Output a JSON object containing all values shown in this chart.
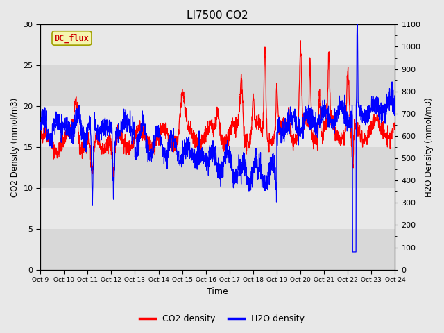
{
  "title": "LI7500 CO2",
  "xlabel": "Time",
  "ylabel_left": "CO2 Density (mmol/m3)",
  "ylabel_right": "H2O Density (mmol/m3)",
  "x_tick_labels": [
    "Oct 9",
    "Oct 10",
    "Oct 11",
    "Oct 12",
    "Oct 13",
    "Oct 14",
    "Oct 15",
    "Oct 16",
    "Oct 17",
    "Oct 18",
    "Oct 19",
    "Oct 20",
    "Oct 21",
    "Oct 22",
    "Oct 23",
    "Oct 24"
  ],
  "ylim_left": [
    0,
    30
  ],
  "ylim_right": [
    0,
    1100
  ],
  "yticks_left": [
    0,
    5,
    10,
    15,
    20,
    25,
    30
  ],
  "yticks_right": [
    0,
    100,
    200,
    300,
    400,
    500,
    600,
    700,
    800,
    900,
    1000,
    1100
  ],
  "co2_color": "#ff0000",
  "h2o_color": "#0000ff",
  "outer_bg": "#e8e8e8",
  "band_light": "#e8e8e8",
  "band_dark": "#d8d8d8",
  "annotation_text": "DC_flux",
  "annotation_color": "#cc0000",
  "annotation_bg": "#f5f5b0",
  "annotation_edge": "#a0a000",
  "legend_co2": "CO2 density",
  "legend_h2o": "H2O density",
  "n_points": 2000
}
